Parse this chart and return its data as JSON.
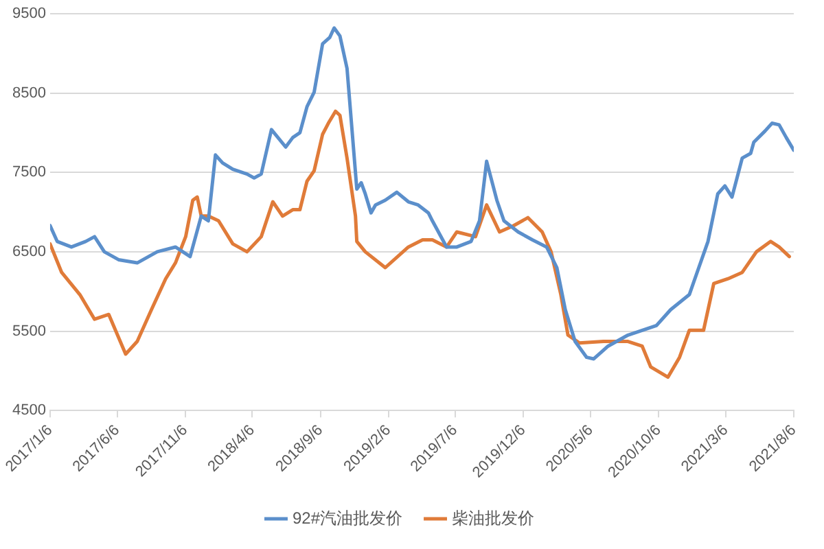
{
  "chart_data": {
    "type": "line",
    "grid": "y",
    "legend": "bottom",
    "marker": "none",
    "line_style": "solid",
    "ylim": [
      4500,
      9500
    ],
    "yticks": [
      4500,
      5500,
      6500,
      7500,
      8500,
      9500
    ],
    "xlim": [
      "2017-01-06",
      "2021-08-06"
    ],
    "xticks": [
      {
        "value": "2017-01-06",
        "label": "2017/1/6"
      },
      {
        "value": "2017-06-06",
        "label": "2017/6/6"
      },
      {
        "value": "2017-11-06",
        "label": "2017/11/6"
      },
      {
        "value": "2018-04-06",
        "label": "2018/4/6"
      },
      {
        "value": "2018-09-06",
        "label": "2018/9/6"
      },
      {
        "value": "2019-02-06",
        "label": "2019/2/6"
      },
      {
        "value": "2019-07-06",
        "label": "2019/7/6"
      },
      {
        "value": "2019-12-06",
        "label": "2019/12/6"
      },
      {
        "value": "2020-05-06",
        "label": "2020/5/6"
      },
      {
        "value": "2020-10-06",
        "label": "2020/10/6"
      },
      {
        "value": "2021-03-06",
        "label": "2021/3/6"
      },
      {
        "value": "2021-08-06",
        "label": "2021/8/6"
      }
    ],
    "series": [
      {
        "name": "92#汽油批发价",
        "color": "#5b8fcb",
        "x": [
          "2017-01-06",
          "2017-01-22",
          "2017-02-23",
          "2017-03-27",
          "2017-04-16",
          "2017-05-08",
          "2017-06-09",
          "2017-07-21",
          "2017-09-04",
          "2017-10-15",
          "2017-11-17",
          "2017-12-12",
          "2017-12-28",
          "2018-01-13",
          "2018-01-29",
          "2018-02-21",
          "2018-03-25",
          "2018-04-10",
          "2018-04-26",
          "2018-05-19",
          "2018-06-20",
          "2018-07-06",
          "2018-07-22",
          "2018-08-07",
          "2018-08-23",
          "2018-09-11",
          "2018-09-27",
          "2018-10-07",
          "2018-10-20",
          "2018-11-05",
          "2018-11-27",
          "2018-12-07",
          "2018-12-16",
          "2018-12-29",
          "2019-01-08",
          "2019-01-30",
          "2019-02-25",
          "2019-03-23",
          "2019-04-14",
          "2019-05-07",
          "2019-05-16",
          "2019-06-17",
          "2019-07-10",
          "2019-08-11",
          "2019-08-30",
          "2019-09-15",
          "2019-10-08",
          "2019-10-24",
          "2019-11-25",
          "2019-12-27",
          "2020-01-28",
          "2020-02-20",
          "2020-03-10",
          "2020-04-01",
          "2020-04-27",
          "2020-05-13",
          "2020-06-14",
          "2020-07-29",
          "2020-10-01",
          "2020-11-02",
          "2020-12-14",
          "2021-01-25",
          "2021-02-16",
          "2021-03-04",
          "2021-03-20",
          "2021-04-12",
          "2021-05-01",
          "2021-05-08",
          "2021-06-02",
          "2021-06-18",
          "2021-07-04",
          "2021-07-20",
          "2021-08-06"
        ],
        "values": [
          6830,
          6630,
          6560,
          6630,
          6690,
          6500,
          6400,
          6360,
          6500,
          6560,
          6440,
          6950,
          6890,
          7720,
          7620,
          7540,
          7480,
          7430,
          7480,
          8040,
          7820,
          7940,
          8000,
          8330,
          8510,
          9120,
          9200,
          9320,
          9220,
          8810,
          7290,
          7370,
          7230,
          6990,
          7090,
          7150,
          7250,
          7130,
          7090,
          6990,
          6890,
          6560,
          6560,
          6630,
          6890,
          7640,
          7150,
          6890,
          6750,
          6650,
          6560,
          6300,
          5770,
          5370,
          5170,
          5150,
          5310,
          5450,
          5570,
          5770,
          5960,
          6630,
          7230,
          7330,
          7190,
          7680,
          7740,
          7880,
          8020,
          8120,
          8100,
          7940,
          7780
        ]
      },
      {
        "name": "柴油批发价",
        "color": "#e07b39",
        "x": [
          "2017-01-06",
          "2017-02-01",
          "2017-03-14",
          "2017-04-16",
          "2017-05-18",
          "2017-06-25",
          "2017-07-21",
          "2017-08-22",
          "2017-09-23",
          "2017-10-15",
          "2017-11-07",
          "2017-11-23",
          "2017-12-03",
          "2017-12-12",
          "2017-12-28",
          "2018-01-20",
          "2018-02-21",
          "2018-03-25",
          "2018-04-26",
          "2018-05-22",
          "2018-06-13",
          "2018-07-06",
          "2018-07-22",
          "2018-08-07",
          "2018-08-23",
          "2018-09-11",
          "2018-09-24",
          "2018-10-10",
          "2018-10-20",
          "2018-11-05",
          "2018-11-24",
          "2018-11-27",
          "2018-12-16",
          "2019-01-30",
          "2019-03-23",
          "2019-04-24",
          "2019-05-16",
          "2019-06-17",
          "2019-07-10",
          "2019-08-21",
          "2019-09-15",
          "2019-10-14",
          "2019-11-15",
          "2019-12-17",
          "2020-01-18",
          "2020-02-07",
          "2020-02-29",
          "2020-03-16",
          "2020-04-11",
          "2020-06-04",
          "2020-07-29",
          "2020-08-30",
          "2020-09-18",
          "2020-10-27",
          "2020-11-22",
          "2020-12-14",
          "2021-01-15",
          "2021-02-07",
          "2021-03-11",
          "2021-04-12",
          "2021-05-14",
          "2021-06-15",
          "2021-07-04",
          "2021-07-27"
        ],
        "values": [
          6600,
          6240,
          5960,
          5650,
          5710,
          5210,
          5370,
          5770,
          6160,
          6360,
          6690,
          7150,
          7190,
          6950,
          6950,
          6890,
          6600,
          6500,
          6690,
          7130,
          6950,
          7030,
          7030,
          7390,
          7520,
          7980,
          8120,
          8270,
          8220,
          7680,
          6950,
          6630,
          6500,
          6300,
          6560,
          6650,
          6650,
          6560,
          6750,
          6690,
          7090,
          6750,
          6830,
          6930,
          6750,
          6500,
          5960,
          5450,
          5350,
          5370,
          5370,
          5310,
          5050,
          4920,
          5170,
          5510,
          5510,
          6100,
          6160,
          6240,
          6500,
          6630,
          6560,
          6440
        ]
      }
    ]
  }
}
